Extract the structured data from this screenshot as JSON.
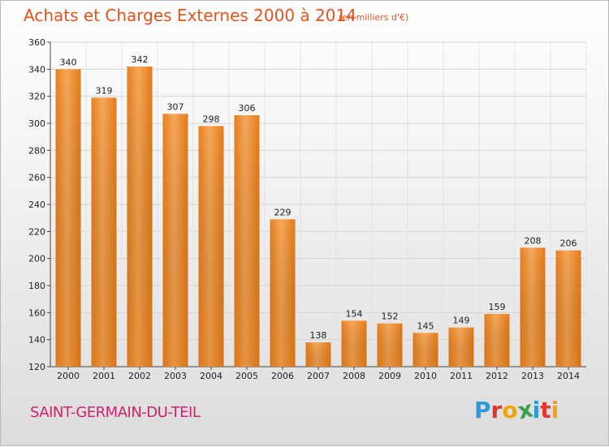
{
  "chart_data": {
    "type": "bar",
    "title": "Achats et Charges Externes 2000 à 2014",
    "subtitle": "(en milliers d'€)",
    "categories": [
      "2000",
      "2001",
      "2002",
      "2003",
      "2004",
      "2005",
      "2006",
      "2007",
      "2008",
      "2009",
      "2010",
      "2011",
      "2012",
      "2013",
      "2014"
    ],
    "values": [
      340,
      319,
      342,
      307,
      298,
      306,
      229,
      138,
      154,
      152,
      145,
      149,
      159,
      208,
      206
    ],
    "ylim": [
      120,
      360
    ],
    "yticks": [
      120,
      140,
      160,
      180,
      200,
      220,
      240,
      260,
      280,
      300,
      320,
      340,
      360
    ],
    "grid": true,
    "bar_color": "#f28c28",
    "bar_color_light": "#f7a85a",
    "bar_color_dark": "#e07a18"
  },
  "footer": {
    "commune": "SAINT-GERMAIN-DU-TEIL",
    "logo_letters": [
      "P",
      "r",
      "o",
      "x",
      "i",
      "t",
      "i"
    ],
    "logo_colors": [
      "#2a9bd6",
      "#e3342f",
      "#f0a30a",
      "#3aa04a",
      "#2a9bd6",
      "#e3342f",
      "#f0a30a"
    ]
  }
}
